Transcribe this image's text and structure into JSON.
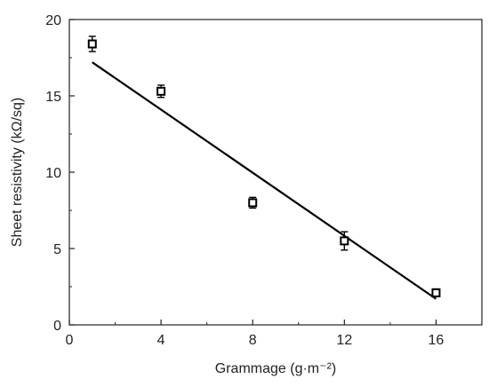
{
  "chart_data": {
    "type": "scatter",
    "title": "",
    "xlabel": "Grammage (g·m⁻²)",
    "ylabel": "Sheet resistivity (kΩ/sq)",
    "xlim": [
      0,
      18
    ],
    "ylim": [
      0,
      20
    ],
    "x_ticks": [
      0,
      4,
      8,
      12,
      16
    ],
    "y_ticks": [
      0,
      5,
      10,
      15,
      20
    ],
    "grid": false,
    "legend": "none",
    "series": [
      {
        "marker": "open-square",
        "x": [
          1,
          4,
          8,
          12,
          16
        ],
        "y": [
          18.4,
          15.3,
          8.0,
          5.5,
          2.1
        ],
        "err": [
          0.5,
          0.4,
          0.35,
          0.6,
          0.25
        ]
      }
    ],
    "fit_line": {
      "x": [
        1,
        16
      ],
      "y": [
        17.2,
        1.7
      ]
    },
    "colors": {
      "marker": "#000000",
      "line": "#000000",
      "axis": "#222222"
    }
  }
}
